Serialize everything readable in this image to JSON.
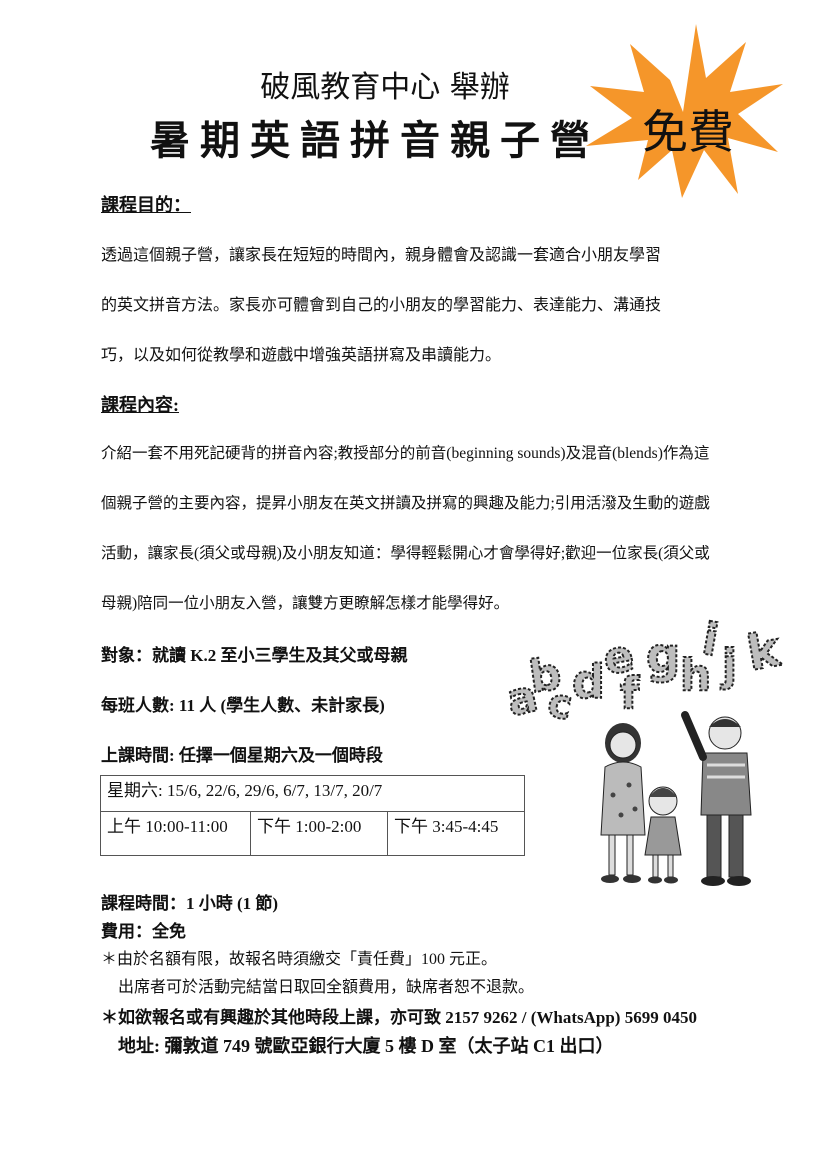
{
  "header": {
    "organizer": "破風教育中心 舉辦",
    "title": "暑期英語拼音親子營",
    "badge": "免費"
  },
  "purpose": {
    "heading": "課程目的：",
    "lines": [
      "透過這個親子營，讓家長在短短的時間內，親身體會及認識一套適合小朋友學習",
      "的英文拼音方法。家長亦可體會到自己的小朋友的學習能力、表達能力、溝通技",
      "巧，以及如何從教學和遊戲中增強英語拼寫及串讀能力。"
    ]
  },
  "content": {
    "heading": "課程內容:",
    "lines": [
      "介紹一套不用死記硬背的拼音內容;教授部分的前音(beginning sounds)及混音(blends)作為這",
      "個親子營的主要內容，提昇小朋友在英文拼讀及拼寫的興趣及能力;引用活潑及生動的遊戲",
      "活動，讓家長(須父或母親)及小朋友知道：學得輕鬆開心才會學得好;歡迎一位家長(須父或",
      "母親)陪同一位小朋友入營，讓雙方更瞭解怎樣才能學得好。"
    ]
  },
  "details": {
    "target": "對象：就讀 K.2 至小三學生及其父或母親",
    "class_size": "每班人數: 11 人  (學生人數、未計家長)",
    "schedule_heading": "上課時間: 任擇一個星期六及一個時段"
  },
  "schedule": {
    "dates": "星期六: 15/6, 22/6, 29/6, 6/7, 13/7, 20/7",
    "slots": [
      "上午 10:00-11:00",
      "下午 1:00-2:00",
      "下午 3:45-4:45"
    ]
  },
  "letters": [
    "a",
    "b",
    "c",
    "d",
    "e",
    "f",
    "g",
    "h",
    "i",
    "j",
    "k"
  ],
  "footer": {
    "duration": "課程時間：1 小時  (1 節)",
    "fee": "費用：全免",
    "note1": "＊由於名額有限，故報名時須繳交「責任費」100 元正。",
    "note2": "出席者可於活動完結當日取回全額費用，缺席者恕不退款。",
    "contact": "＊如欲報名或有興趣於其他時段上課，亦可致 2157 9262 / (WhatsApp) 5699 0450",
    "address": "地址:  彌敦道 749 號歐亞銀行大廈 5 樓 D 室（太子站 C1 出口）"
  },
  "colors": {
    "burst": "#f5962a",
    "text": "#111111"
  }
}
